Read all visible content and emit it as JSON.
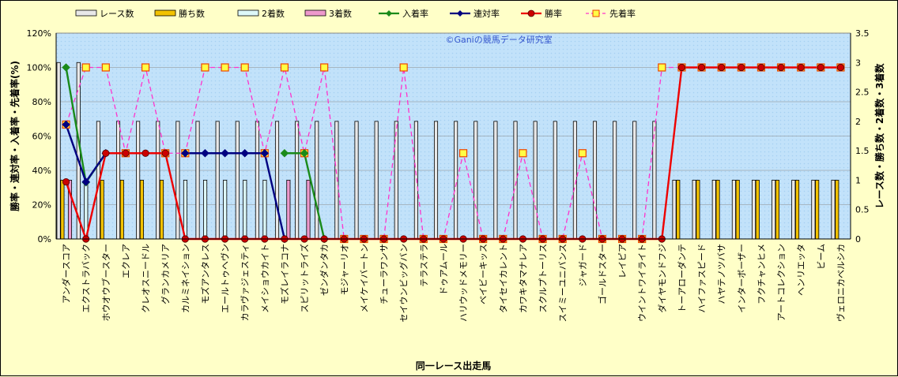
{
  "chart_data": {
    "type": "bar",
    "xlabel": "同一レース出走馬",
    "ylabel_left": "勝率・連対率・入着率・先着率(%)",
    "ylabel_right": "レース数・勝ち数・2着数・3着数",
    "watermark": "©Ganiの競馬データ研究室",
    "ylim_left": [
      0,
      120
    ],
    "ylim_right": [
      0,
      3.5
    ],
    "left_ticks": [
      "0%",
      "20%",
      "40%",
      "60%",
      "80%",
      "100%",
      "120%"
    ],
    "right_ticks": [
      "0",
      "0.5",
      "1",
      "1.5",
      "2",
      "2.5",
      "3",
      "3.5"
    ],
    "grid": true,
    "legend_position": "top",
    "categories": [
      "アンダースコア",
      "エクストラバック",
      "ホウオウブースター",
      "エクレア",
      "クレオスニードル",
      "グランカメリア",
      "カルミネイション",
      "モズアンタレス",
      "エールトゥヘヴン",
      "カラヴァジェスティ",
      "メイショウカイト",
      "モズレイラコナ",
      "スピリットライズ",
      "ゼンダンタカ",
      "モジャーリオ",
      "メイケイバートン",
      "チューラワンサ",
      "セイウンビッグバン",
      "テラステラ",
      "ドゥアムール",
      "ハリウッドメモリー",
      "ベイビーキッス",
      "タイセイカレント",
      "カワキタマナレア",
      "スクルプトーリス",
      "スイミーユニバンス",
      "ジャガード",
      "ゴールドスター",
      "レイピア",
      "ウイントワイライト",
      "ダイヤモンドフジ",
      "トーアローダンテ",
      "ハイファスピード",
      "ハヤテノツバサ",
      "インターボーザー",
      "フクチャンヒメ",
      "アートコレクション",
      "ヘンリエッタ",
      "ビーム",
      "ヴェロニカベルシカ"
    ],
    "series": [
      {
        "name": "レース数",
        "axis": "right",
        "color": "#e8e8e8",
        "values": [
          3,
          3,
          2,
          2,
          2,
          2,
          2,
          2,
          2,
          2,
          2,
          2,
          2,
          2,
          2,
          2,
          2,
          2,
          2,
          2,
          2,
          2,
          2,
          2,
          2,
          2,
          2,
          2,
          2,
          2,
          2,
          1,
          1,
          1,
          1,
          1,
          1,
          1,
          1,
          1
        ]
      },
      {
        "name": "勝ち数",
        "axis": "right",
        "color": "#f2c200",
        "values": [
          1,
          0,
          1,
          1,
          1,
          1,
          0,
          0,
          0,
          0,
          0,
          0,
          0,
          0,
          0,
          0,
          0,
          0,
          0,
          0,
          0,
          0,
          0,
          0,
          0,
          0,
          0,
          0,
          0,
          0,
          0,
          1,
          1,
          1,
          1,
          1,
          1,
          1,
          1,
          1
        ]
      },
      {
        "name": "2着数",
        "axis": "right",
        "color": "#ddf8f8",
        "values": [
          0,
          1,
          0,
          0,
          0,
          0,
          1,
          1,
          1,
          1,
          1,
          0,
          0,
          0,
          0,
          0,
          0,
          0,
          0,
          0,
          0,
          0,
          0,
          0,
          0,
          0,
          0,
          0,
          0,
          0,
          0,
          0,
          0,
          0,
          0,
          0,
          0,
          0,
          0,
          0
        ]
      },
      {
        "name": "3着数",
        "axis": "right",
        "color": "#ee99cc",
        "values": [
          1,
          0,
          0,
          0,
          0,
          0,
          0,
          0,
          0,
          0,
          0,
          1,
          1,
          0,
          0,
          0,
          0,
          0,
          0,
          0,
          0,
          0,
          0,
          0,
          0,
          0,
          0,
          0,
          0,
          0,
          0,
          0,
          0,
          0,
          0,
          0,
          0,
          0,
          0,
          0
        ]
      },
      {
        "name": "入着率",
        "axis": "left",
        "color": "#1a8a1a",
        "marker": "diamond",
        "values": [
          100,
          33,
          50,
          null,
          null,
          null,
          null,
          null,
          null,
          null,
          null,
          50,
          50,
          0,
          null,
          null,
          null,
          null,
          null,
          null,
          null,
          null,
          null,
          null,
          null,
          null,
          null,
          null,
          null,
          null,
          null,
          null,
          null,
          null,
          null,
          null,
          null,
          null,
          null,
          null
        ]
      },
      {
        "name": "連対率",
        "axis": "left",
        "color": "#000080",
        "marker": "diamond",
        "values": [
          66.7,
          33.3,
          50,
          null,
          null,
          null,
          50,
          50,
          50,
          50,
          50,
          0,
          null,
          null,
          null,
          null,
          null,
          null,
          null,
          null,
          null,
          null,
          null,
          null,
          null,
          null,
          null,
          null,
          null,
          null,
          null,
          null,
          null,
          null,
          null,
          null,
          null,
          null,
          null,
          null
        ]
      },
      {
        "name": "勝率",
        "axis": "left",
        "color": "#ee0000",
        "marker": "circle",
        "values": [
          33.3,
          0,
          50,
          50,
          50,
          50,
          0,
          0,
          0,
          0,
          0,
          0,
          0,
          0,
          0,
          0,
          0,
          0,
          0,
          0,
          0,
          0,
          0,
          0,
          0,
          0,
          0,
          0,
          0,
          0,
          0,
          100,
          100,
          100,
          100,
          100,
          100,
          100,
          100,
          100
        ]
      },
      {
        "name": "先着率",
        "axis": "left",
        "color": "#ff33cc",
        "marker": "square",
        "values": [
          66.7,
          100,
          100,
          50,
          100,
          50,
          50,
          100,
          100,
          100,
          50,
          100,
          50,
          100,
          0,
          0,
          0,
          100,
          0,
          0,
          50,
          0,
          0,
          50,
          0,
          0,
          50,
          0,
          0,
          0,
          100,
          100,
          100,
          100,
          100,
          100,
          100,
          100,
          100,
          100
        ]
      }
    ]
  }
}
